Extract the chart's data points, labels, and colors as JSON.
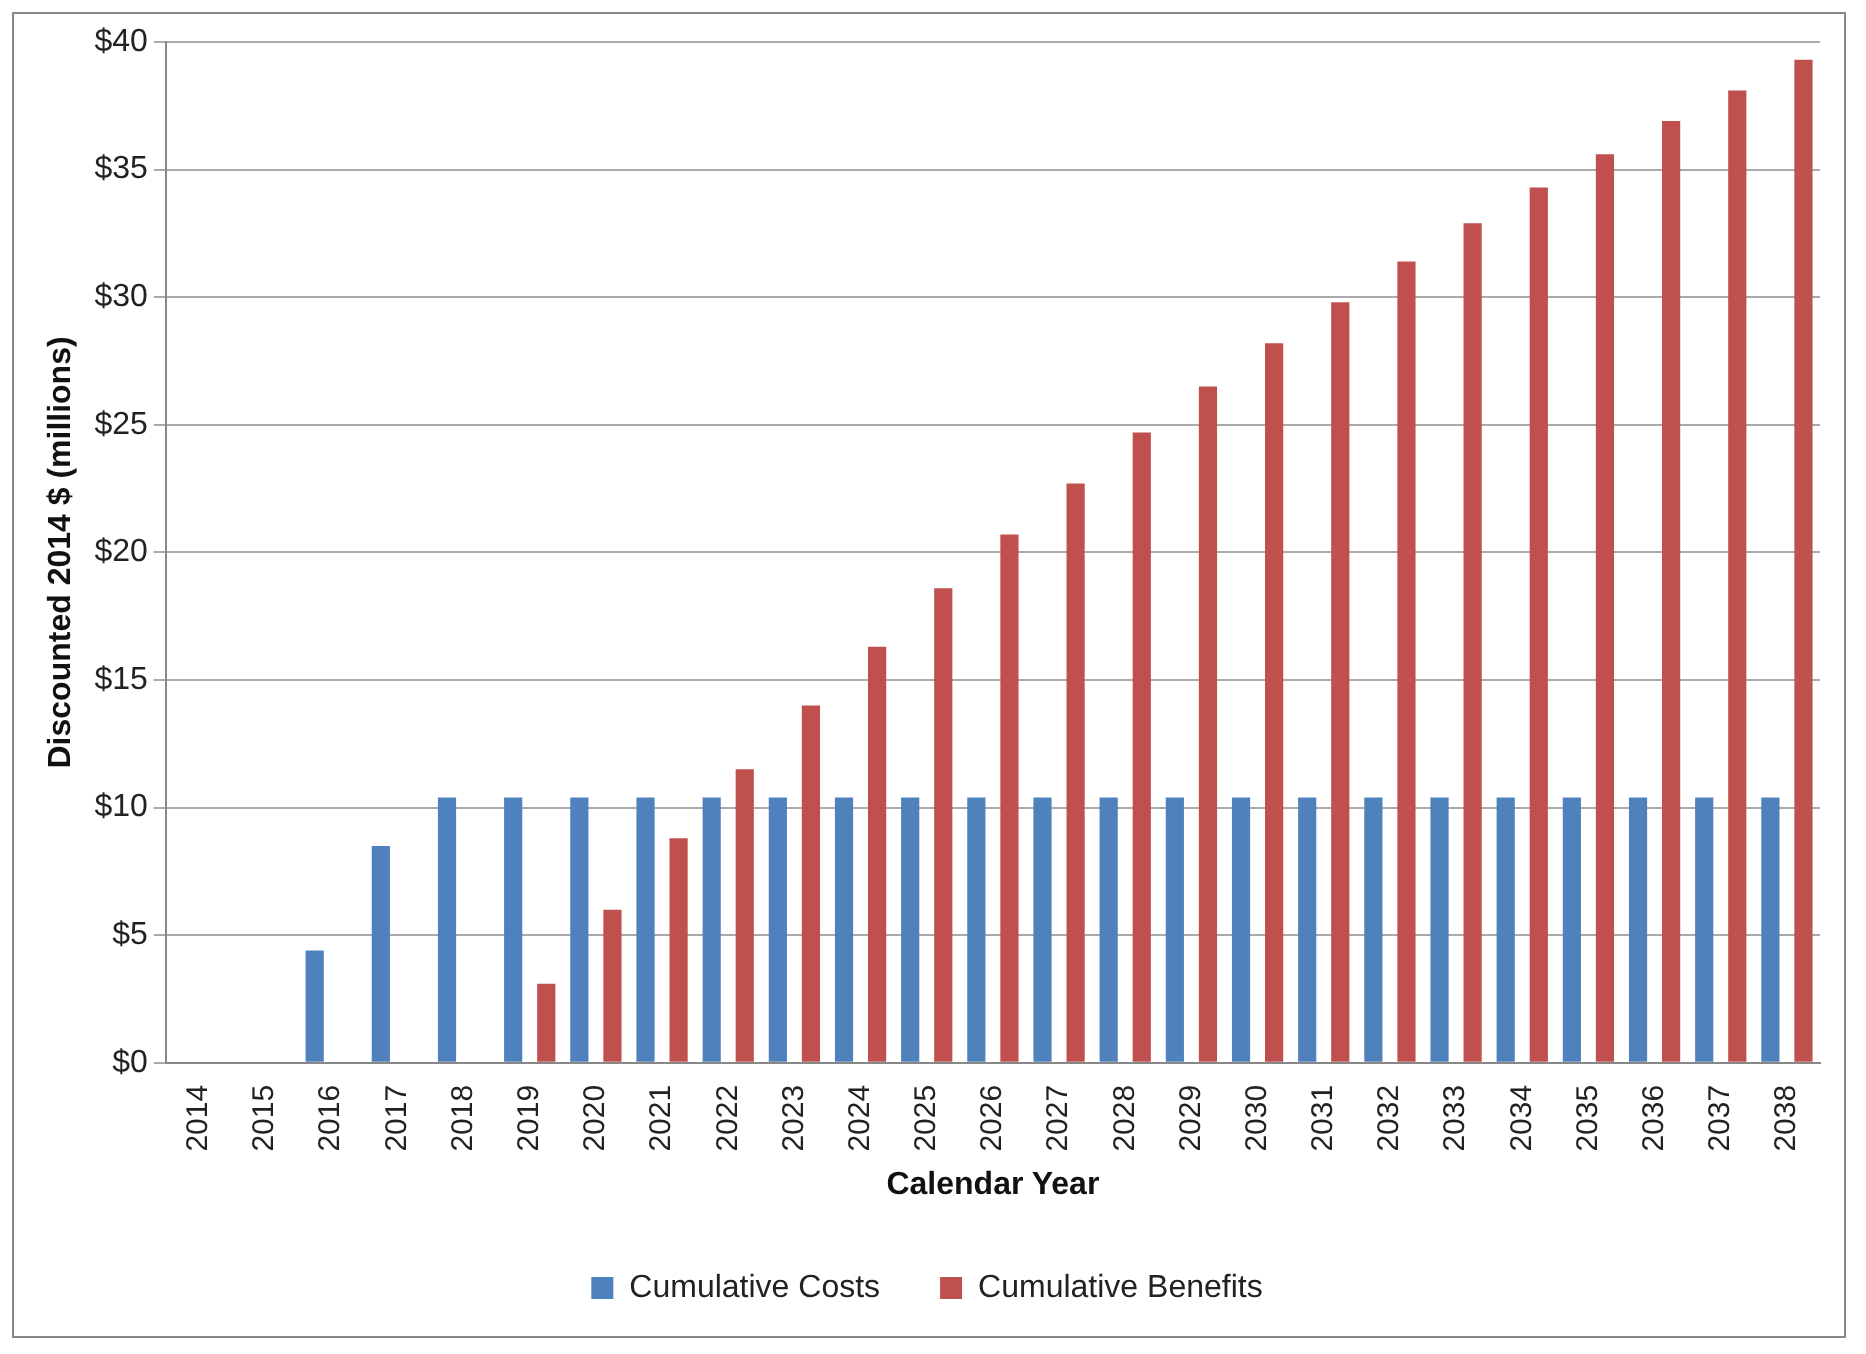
{
  "chart_data": {
    "type": "bar",
    "xlabel": "Calendar Year",
    "ylabel": "Discounted 2014 $ (millions)",
    "categories": [
      "2014",
      "2015",
      "2016",
      "2017",
      "2018",
      "2019",
      "2020",
      "2021",
      "2022",
      "2023",
      "2024",
      "2025",
      "2026",
      "2027",
      "2028",
      "2029",
      "2030",
      "2031",
      "2032",
      "2033",
      "2034",
      "2035",
      "2036",
      "2037",
      "2038"
    ],
    "series": [
      {
        "name": "Cumulative Costs",
        "color": "#4f81bd",
        "values": [
          0,
          0,
          4.4,
          8.5,
          10.4,
          10.4,
          10.4,
          10.4,
          10.4,
          10.4,
          10.4,
          10.4,
          10.4,
          10.4,
          10.4,
          10.4,
          10.4,
          10.4,
          10.4,
          10.4,
          10.4,
          10.4,
          10.4,
          10.4,
          10.4
        ]
      },
      {
        "name": "Cumulative Benefits",
        "color": "#c0504d",
        "values": [
          0,
          0,
          0,
          0,
          0,
          3.1,
          6.0,
          8.8,
          11.5,
          14.0,
          16.3,
          18.6,
          20.7,
          22.7,
          24.7,
          26.5,
          28.2,
          29.8,
          31.4,
          32.9,
          34.3,
          35.6,
          36.9,
          38.1,
          39.3
        ]
      }
    ],
    "ylim": [
      0,
      40
    ],
    "yticks": [
      {
        "value": 0,
        "label": "$0"
      },
      {
        "value": 5,
        "label": "$5"
      },
      {
        "value": 10,
        "label": "$10"
      },
      {
        "value": 15,
        "label": "$15"
      },
      {
        "value": 20,
        "label": "$20"
      },
      {
        "value": 25,
        "label": "$25"
      },
      {
        "value": 30,
        "label": "$30"
      },
      {
        "value": 35,
        "label": "$35"
      },
      {
        "value": 40,
        "label": "$40"
      }
    ],
    "grid": "y",
    "legend": "bottom"
  }
}
